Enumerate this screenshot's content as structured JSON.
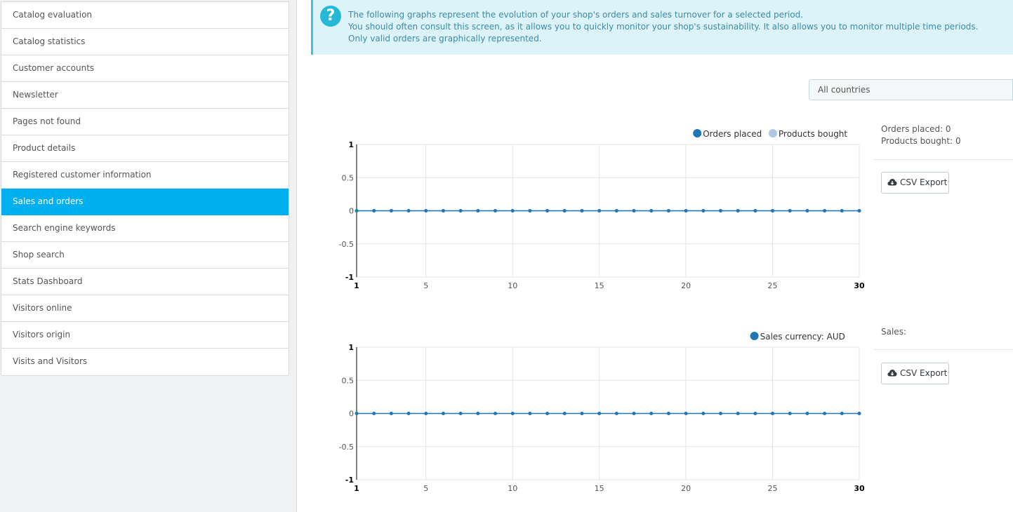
{
  "sidebar": {
    "items": [
      {
        "label": "Catalog evaluation"
      },
      {
        "label": "Catalog statistics"
      },
      {
        "label": "Customer accounts"
      },
      {
        "label": "Newsletter"
      },
      {
        "label": "Pages not found"
      },
      {
        "label": "Product details"
      },
      {
        "label": "Registered customer information"
      },
      {
        "label": "Sales and orders",
        "active": true
      },
      {
        "label": "Search engine keywords"
      },
      {
        "label": "Shop search"
      },
      {
        "label": "Stats Dashboard"
      },
      {
        "label": "Visitors online"
      },
      {
        "label": "Visitors origin"
      },
      {
        "label": "Visits and Visitors"
      }
    ]
  },
  "info": {
    "icon": "question-icon",
    "lines": [
      "The following graphs represent the evolution of your shop's orders and sales turnover for a selected period.",
      "You should often consult this screen, as it allows you to quickly monitor your shop's sustainability. It also allows you to monitor multiple time periods.",
      "Only valid orders are graphically represented."
    ]
  },
  "filter": {
    "country": "All countries"
  },
  "panel1": {
    "stats": [
      "Orders placed: 0",
      "Products bought: 0"
    ],
    "csv_label": "CSV Export"
  },
  "panel2": {
    "stats": [
      "Sales:"
    ],
    "csv_label": "CSV Export"
  },
  "colors": {
    "dark_blue": "#1f77b4",
    "light_blue": "#aec7e8",
    "active_nav": "#00aff0"
  },
  "chart_data": [
    {
      "type": "line",
      "x": [
        1,
        2,
        3,
        4,
        5,
        6,
        7,
        8,
        9,
        10,
        11,
        12,
        13,
        14,
        15,
        16,
        17,
        18,
        19,
        20,
        21,
        22,
        23,
        24,
        25,
        26,
        27,
        28,
        29,
        30
      ],
      "xticks": [
        "1",
        "5",
        "10",
        "15",
        "20",
        "25",
        "30"
      ],
      "yticks": [
        "1",
        "0.5",
        "0",
        "-0.5",
        "-1"
      ],
      "ylim": [
        -1,
        1
      ],
      "legend_position": "top-right",
      "series": [
        {
          "name": "Orders placed",
          "color": "#1f77b4",
          "values": [
            0,
            0,
            0,
            0,
            0,
            0,
            0,
            0,
            0,
            0,
            0,
            0,
            0,
            0,
            0,
            0,
            0,
            0,
            0,
            0,
            0,
            0,
            0,
            0,
            0,
            0,
            0,
            0,
            0,
            0
          ]
        },
        {
          "name": "Products bought",
          "color": "#aec7e8",
          "values": [
            0,
            0,
            0,
            0,
            0,
            0,
            0,
            0,
            0,
            0,
            0,
            0,
            0,
            0,
            0,
            0,
            0,
            0,
            0,
            0,
            0,
            0,
            0,
            0,
            0,
            0,
            0,
            0,
            0,
            0
          ]
        }
      ]
    },
    {
      "type": "line",
      "x": [
        1,
        2,
        3,
        4,
        5,
        6,
        7,
        8,
        9,
        10,
        11,
        12,
        13,
        14,
        15,
        16,
        17,
        18,
        19,
        20,
        21,
        22,
        23,
        24,
        25,
        26,
        27,
        28,
        29,
        30
      ],
      "xticks": [
        "1",
        "5",
        "10",
        "15",
        "20",
        "25",
        "30"
      ],
      "yticks": [
        "1",
        "0.5",
        "0",
        "-0.5",
        "-1"
      ],
      "ylim": [
        -1,
        1
      ],
      "legend_position": "top-right",
      "series": [
        {
          "name": "Sales currency: AUD",
          "color": "#1f77b4",
          "values": [
            0,
            0,
            0,
            0,
            0,
            0,
            0,
            0,
            0,
            0,
            0,
            0,
            0,
            0,
            0,
            0,
            0,
            0,
            0,
            0,
            0,
            0,
            0,
            0,
            0,
            0,
            0,
            0,
            0,
            0
          ]
        }
      ]
    }
  ]
}
